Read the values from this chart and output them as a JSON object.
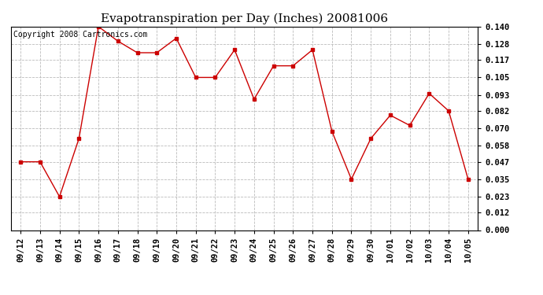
{
  "title": "Evapotranspiration per Day (Inches) 20081006",
  "copyright_text": "Copyright 2008 Cartronics.com",
  "x_labels": [
    "09/12",
    "09/13",
    "09/14",
    "09/15",
    "09/16",
    "09/17",
    "09/18",
    "09/19",
    "09/20",
    "09/21",
    "09/22",
    "09/23",
    "09/24",
    "09/25",
    "09/26",
    "09/27",
    "09/28",
    "09/29",
    "09/30",
    "10/01",
    "10/02",
    "10/03",
    "10/04",
    "10/05"
  ],
  "y_values": [
    0.047,
    0.047,
    0.023,
    0.063,
    0.14,
    0.13,
    0.122,
    0.122,
    0.132,
    0.105,
    0.105,
    0.124,
    0.09,
    0.113,
    0.113,
    0.124,
    0.068,
    0.035,
    0.063,
    0.079,
    0.072,
    0.094,
    0.082,
    0.035
  ],
  "line_color": "#cc0000",
  "marker": "s",
  "marker_size": 3,
  "ylim": [
    0.0,
    0.14
  ],
  "yticks": [
    0.0,
    0.012,
    0.023,
    0.035,
    0.047,
    0.058,
    0.07,
    0.082,
    0.093,
    0.105,
    0.117,
    0.128,
    0.14
  ],
  "background_color": "#ffffff",
  "plot_bg_color": "#ffffff",
  "grid_color": "#bbbbbb",
  "title_fontsize": 11,
  "copyright_fontsize": 7,
  "tick_fontsize": 7.5,
  "figsize": [
    6.9,
    3.75
  ],
  "dpi": 100
}
